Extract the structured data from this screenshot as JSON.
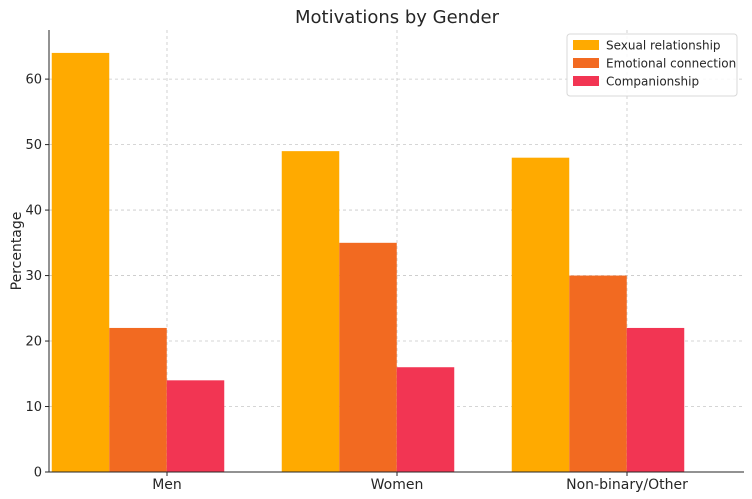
{
  "chart_data": {
    "type": "bar",
    "title": "Motivations by Gender",
    "xlabel": "",
    "ylabel": "Percentage",
    "categories": [
      "Men",
      "Women",
      "Non-binary/Other"
    ],
    "series": [
      {
        "name": "Sexual relationship",
        "values": [
          64,
          49,
          48
        ],
        "color": "#FFAA00"
      },
      {
        "name": "Emotional connection",
        "values": [
          22,
          35,
          30
        ],
        "color": "#F26A21"
      },
      {
        "name": "Companionship",
        "values": [
          14,
          16,
          22
        ],
        "color": "#F23553"
      }
    ],
    "ylim": [
      0,
      67.5
    ],
    "yticks": [
      0,
      10,
      20,
      30,
      40,
      50,
      60
    ],
    "grid": true,
    "legend": "top-right"
  }
}
